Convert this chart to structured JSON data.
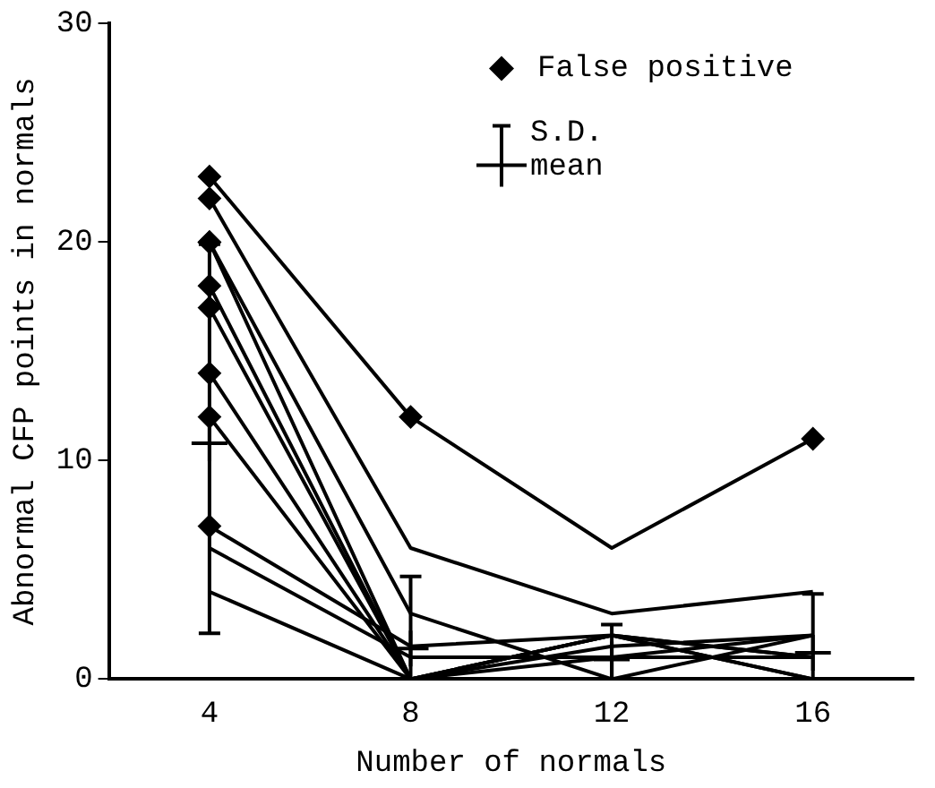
{
  "chart_data": {
    "type": "line",
    "xlabel": "Number of normals",
    "ylabel": "Abnormal CFP points in normals",
    "xlim": [
      2,
      18
    ],
    "xticks": [
      4,
      8,
      12,
      16
    ],
    "ylim": [
      0,
      30
    ],
    "yticks": [
      0,
      10,
      20,
      30
    ],
    "grid": false,
    "legend": "top right",
    "marker": "none",
    "line_style": "solid",
    "annotations": [
      "S.D."
    ],
    "series": [
      {
        "color": "#000000",
        "x": [
          4,
          8,
          12,
          16
        ],
        "values": [
          23,
          12,
          6,
          11
        ]
      },
      {
        "color": "#000000",
        "x": [
          4,
          8,
          12,
          16
        ],
        "values": [
          22,
          6,
          3,
          4
        ]
      },
      {
        "color": "#000000",
        "x": [
          4,
          8,
          12,
          16
        ],
        "values": [
          20,
          3,
          0,
          2
        ]
      },
      {
        "color": "#000000",
        "x": [
          4,
          8,
          12,
          16
        ],
        "values": [
          20,
          0,
          2,
          1
        ]
      },
      {
        "color": "#000000",
        "x": [
          4,
          8,
          12,
          16
        ],
        "values": [
          18,
          0,
          2,
          0
        ]
      },
      {
        "color": "#000000",
        "x": [
          4,
          8,
          12,
          16
        ],
        "values": [
          17,
          0,
          1.5,
          2
        ]
      },
      {
        "color": "#000000",
        "x": [
          4,
          8,
          12,
          16
        ],
        "values": [
          14,
          0,
          1,
          1
        ]
      },
      {
        "color": "#000000",
        "x": [
          4,
          8,
          12,
          16
        ],
        "values": [
          12,
          0,
          2,
          0
        ]
      },
      {
        "color": "#000000",
        "x": [
          4,
          8,
          12,
          16
        ],
        "values": [
          7,
          1.5,
          2,
          1
        ]
      },
      {
        "color": "#000000",
        "x": [
          4,
          8,
          12,
          16
        ],
        "values": [
          6,
          1,
          1,
          2
        ]
      },
      {
        "color": "#000000",
        "x": [
          4,
          8,
          12,
          16
        ],
        "values": [
          4,
          0,
          0,
          0
        ]
      },
      {
        "type": "scatter",
        "name": "False positive",
        "marker": "diamond",
        "color": "#000000",
        "x": [
          4,
          4,
          4,
          4,
          4,
          4,
          4,
          4,
          4,
          8,
          16
        ],
        "values": [
          23,
          22,
          20,
          20,
          18,
          17,
          14,
          12,
          7,
          12,
          11
        ]
      },
      {
        "type": "scatter",
        "name": "mean",
        "marker": "cross",
        "color": "#000000",
        "x": [
          4,
          8,
          12,
          16
        ],
        "values": [
          10.8,
          1.4,
          0.9,
          1.2
        ],
        "errors": [
          [
            2.1,
            19.9
          ],
          [
            0,
            4.7
          ],
          [
            0,
            2.5
          ],
          [
            0,
            3.9
          ]
        ]
      }
    ]
  }
}
